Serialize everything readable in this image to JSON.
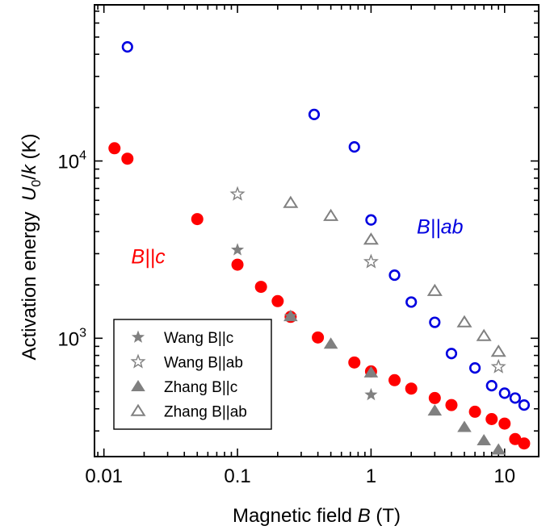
{
  "chart_data": {
    "type": "scatter",
    "x_scale": "log",
    "y_scale": "log",
    "xlim": [
      0.0085,
      18
    ],
    "ylim": [
      215,
      76000
    ],
    "grid": false,
    "legend_position": "bottom-left",
    "xlabel": {
      "prefix": "Magnetic field ",
      "italic": "B",
      "suffix": " (T)"
    },
    "ylabel": {
      "prefix": "Activation energy  ",
      "italic1": "U",
      "sub": "0",
      "mid": "/",
      "italic2": "k",
      "suffix": " (K)"
    },
    "x_ticks": [
      {
        "value": 0.01,
        "label": "0.01"
      },
      {
        "value": 0.1,
        "label": "0.1"
      },
      {
        "value": 1,
        "label": "1"
      },
      {
        "value": 10,
        "label": "10"
      }
    ],
    "y_ticks": [
      {
        "value": 1000,
        "base": "10",
        "exp": "3"
      },
      {
        "value": 10000,
        "base": "10",
        "exp": "4"
      }
    ],
    "annotations": [
      {
        "text": "B||c",
        "color": "#ff0000",
        "x": 0.016,
        "y": 2650
      },
      {
        "text": "B||ab",
        "color": "#0000e0",
        "x": 2.2,
        "y": 3900
      }
    ],
    "series": [
      {
        "marker": "filled-circle",
        "color": "#ff0000",
        "points": [
          [
            0.012,
            11800
          ],
          [
            0.015,
            10300
          ],
          [
            0.05,
            4700
          ],
          [
            0.1,
            2600
          ],
          [
            0.15,
            1950
          ],
          [
            0.2,
            1620
          ],
          [
            0.25,
            1320
          ],
          [
            0.4,
            1010
          ],
          [
            0.75,
            730
          ],
          [
            1,
            650
          ],
          [
            1.5,
            580
          ],
          [
            2,
            520
          ],
          [
            3,
            460
          ],
          [
            4,
            420
          ],
          [
            6,
            385
          ],
          [
            8,
            350
          ],
          [
            10,
            330
          ],
          [
            12,
            270
          ],
          [
            14,
            255
          ]
        ]
      },
      {
        "marker": "open-circle",
        "color": "#0000e0",
        "points": [
          [
            0.015,
            44000
          ],
          [
            0.375,
            18300
          ],
          [
            0.75,
            12000
          ],
          [
            1,
            4650
          ],
          [
            1.5,
            2270
          ],
          [
            2,
            1600
          ],
          [
            3,
            1230
          ],
          [
            4,
            820
          ],
          [
            6,
            680
          ],
          [
            8,
            540
          ],
          [
            10,
            490
          ],
          [
            12,
            460
          ],
          [
            14,
            420
          ]
        ]
      },
      {
        "name": "Wang B||c",
        "marker": "filled-star",
        "color": "#808080",
        "points": [
          [
            0.1,
            3150
          ],
          [
            0.25,
            1330
          ],
          [
            1,
            480
          ]
        ]
      },
      {
        "name": "Wang B||ab",
        "marker": "open-star",
        "color": "#808080",
        "points": [
          [
            0.1,
            6500
          ],
          [
            1,
            2700
          ],
          [
            9,
            690
          ]
        ]
      },
      {
        "name": "Zhang B||c",
        "marker": "filled-triangle",
        "color": "#808080",
        "points": [
          [
            0.25,
            1330
          ],
          [
            0.5,
            930
          ],
          [
            1,
            640
          ],
          [
            3,
            390
          ],
          [
            5,
            315
          ],
          [
            7,
            265
          ],
          [
            9,
            235
          ]
        ]
      },
      {
        "name": "Zhang B||ab",
        "marker": "open-triangle",
        "color": "#808080",
        "points": [
          [
            0.25,
            5800
          ],
          [
            0.5,
            4900
          ],
          [
            1,
            3600
          ],
          [
            3,
            1850
          ],
          [
            5,
            1230
          ],
          [
            7,
            1030
          ],
          [
            9,
            840
          ]
        ]
      }
    ]
  }
}
